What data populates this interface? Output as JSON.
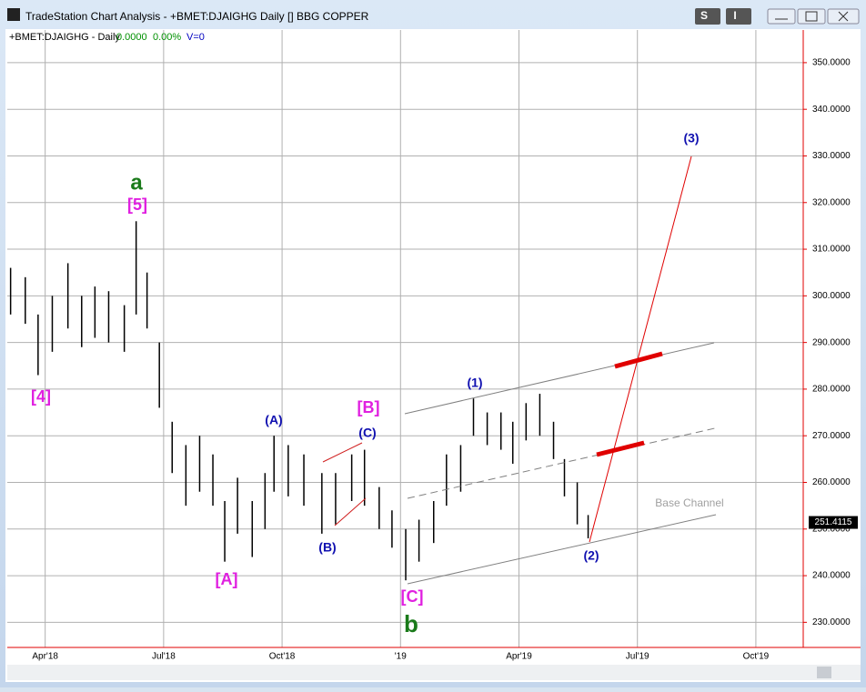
{
  "window": {
    "title": "TradeStation Chart Analysis - +BMET:DJAIGHG Daily [] BBG COPPER",
    "buttons": [
      "S",
      "I"
    ]
  },
  "header": {
    "symbol": "+BMET:DJAIGHG - Daily",
    "change": "0.0000",
    "change_pct": "0.00%",
    "volume": "V=0"
  },
  "chart_data": {
    "type": "hilo",
    "color": "#000000",
    "grid": true,
    "ylim": [
      225,
      357
    ],
    "yticks": [
      {
        "value": 230,
        "label": "230.0000"
      },
      {
        "value": 240,
        "label": "240.0000"
      },
      {
        "value": 250,
        "label": "250.0000"
      },
      {
        "value": 260,
        "label": "260.0000"
      },
      {
        "value": 270,
        "label": "270.0000"
      },
      {
        "value": 280,
        "label": "280.0000"
      },
      {
        "value": 290,
        "label": "290.0000"
      },
      {
        "value": 300,
        "label": "300.0000"
      },
      {
        "value": 310,
        "label": "310.0000"
      },
      {
        "value": 320,
        "label": "320.0000"
      },
      {
        "value": 330,
        "label": "330.0000"
      },
      {
        "value": 340,
        "label": "340.0000"
      },
      {
        "value": 350,
        "label": "350.0000"
      }
    ],
    "xlim": [
      2018.17,
      2019.85
    ],
    "xticks": [
      {
        "value": 2018.25,
        "label": "Apr'18"
      },
      {
        "value": 2018.5,
        "label": "Jul'18"
      },
      {
        "value": 2018.75,
        "label": "Oct'18"
      },
      {
        "value": 2019,
        "label": "'19"
      },
      {
        "value": 2019.25,
        "label": "Apr'19"
      },
      {
        "value": 2019.5,
        "label": "Jul'19"
      },
      {
        "value": 2019.75,
        "label": "Oct'19"
      }
    ],
    "bars": {
      "x": [
        2018.177,
        2018.208,
        2018.235,
        2018.265,
        2018.298,
        2018.327,
        2018.355,
        2018.384,
        2018.417,
        2018.442,
        2018.465,
        2018.491,
        2018.518,
        2018.547,
        2018.576,
        2018.604,
        2018.629,
        2018.656,
        2018.687,
        2018.714,
        2018.733,
        2018.763,
        2018.796,
        2018.834,
        2018.863,
        2018.897,
        2018.924,
        2018.955,
        2018.982,
        2019.011,
        2019.039,
        2019.07,
        2019.097,
        2019.127,
        2019.154,
        2019.183,
        2019.212,
        2019.237,
        2019.265,
        2019.294,
        2019.323,
        2019.346,
        2019.373,
        2019.396
      ],
      "high": [
        306,
        304,
        296,
        300,
        307,
        300,
        302,
        301,
        298,
        316,
        305,
        290,
        273,
        268,
        270,
        266,
        256,
        261,
        256,
        262,
        270,
        268,
        266,
        262,
        262,
        266,
        267,
        259,
        254,
        250,
        252,
        256,
        266,
        268,
        278,
        275,
        275,
        273,
        277,
        279,
        273,
        265,
        260,
        253
      ],
      "low": [
        296,
        294,
        283,
        288,
        293,
        289,
        291,
        290,
        288,
        296,
        293,
        276,
        262,
        255,
        258,
        255,
        243,
        249,
        244,
        250,
        258,
        257,
        255,
        249,
        251,
        256,
        255,
        250,
        246,
        239,
        243,
        247,
        255,
        258,
        270,
        268,
        267,
        264,
        269,
        270,
        265,
        257,
        251,
        248
      ]
    },
    "last_price": 251.4115,
    "annotations": [
      {
        "text": "[4]",
        "color": "#e020e0"
      },
      {
        "text": "a",
        "color": "#1a7a1a"
      },
      {
        "text": "[5]",
        "color": "#e020e0"
      },
      {
        "text": "[A]",
        "color": "#e020e0"
      },
      {
        "text": "(A)",
        "color": "#1010b0"
      },
      {
        "text": "(B)",
        "color": "#1010b0"
      },
      {
        "text": "[B]",
        "color": "#e020e0"
      },
      {
        "text": "(C)",
        "color": "#1010b0"
      },
      {
        "text": "[C]",
        "color": "#e020e0"
      },
      {
        "text": "b",
        "color": "#1a7a1a"
      },
      {
        "text": "(1)",
        "color": "#1010b0"
      },
      {
        "text": "(2)",
        "color": "#1010b0"
      },
      {
        "text": "(3)",
        "color": "#1010b0"
      },
      {
        "text": "Base Channel",
        "color": "#a0a0a0"
      }
    ]
  }
}
